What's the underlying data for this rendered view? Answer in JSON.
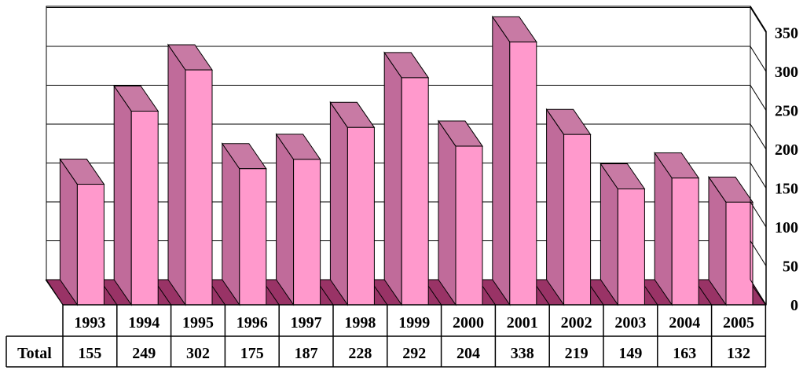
{
  "chart_data": {
    "type": "bar",
    "style": "3d-column-with-data-table",
    "categories": [
      "1993",
      "1994",
      "1995",
      "1996",
      "1997",
      "1998",
      "1999",
      "2000",
      "2001",
      "2002",
      "2003",
      "2004",
      "2005"
    ],
    "series": [
      {
        "name": "Total",
        "values": [
          155,
          249,
          302,
          175,
          187,
          228,
          292,
          204,
          338,
          219,
          149,
          163,
          132
        ]
      }
    ],
    "title": "",
    "xlabel": "",
    "ylabel": "",
    "ylim": [
      0,
      350
    ],
    "yticks": [
      0,
      50,
      100,
      150,
      200,
      250,
      300,
      350
    ],
    "y_axis_side": "right",
    "grid": true,
    "legend": "none",
    "data_table": {
      "row_label": "Total"
    },
    "colors": {
      "bar_front": "#ff99cc",
      "bar_side": "#c06b9a",
      "bar_top": "#c87aa4",
      "floor": "#993366",
      "gridline": "#000000"
    }
  }
}
